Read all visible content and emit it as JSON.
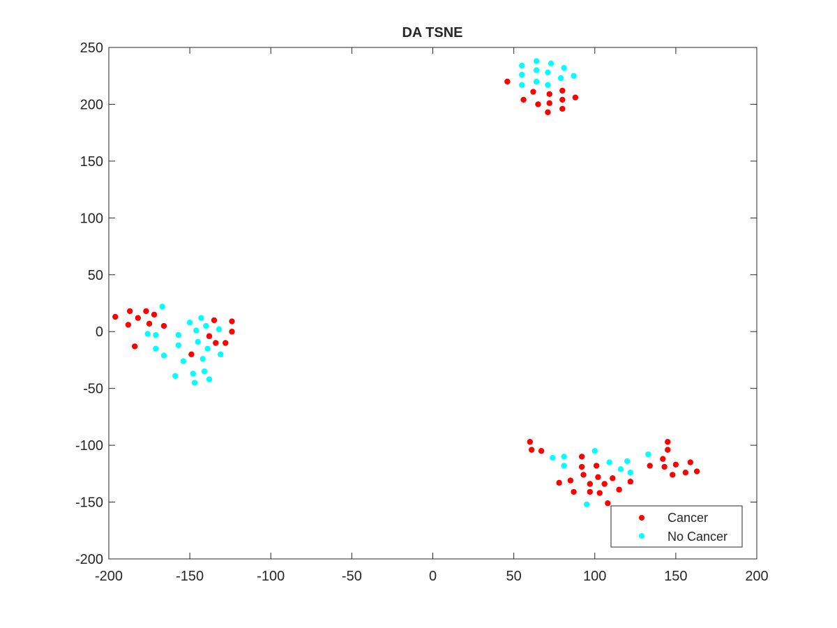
{
  "chart_data": {
    "type": "scatter",
    "title": "DA TSNE",
    "xlabel": "",
    "ylabel": "",
    "xlim": [
      -200,
      200
    ],
    "ylim": [
      -200,
      250
    ],
    "xticks": [
      -200,
      -150,
      -100,
      -50,
      0,
      50,
      100,
      150,
      200
    ],
    "yticks": [
      -200,
      -150,
      -100,
      -50,
      0,
      50,
      100,
      150,
      200,
      250
    ],
    "xtick_labels": [
      "-200",
      "-150",
      "-100",
      "-50",
      "0",
      "50",
      "100",
      "150",
      "200"
    ],
    "ytick_labels": [
      "-200",
      "-150",
      "-100",
      "-50",
      "0",
      "50",
      "100",
      "150",
      "200",
      "250"
    ],
    "grid": false,
    "legend_position": "bottom-right",
    "series": [
      {
        "name": "Cancer",
        "color": "#ff0000",
        "points": [
          [
            -196,
            13
          ],
          [
            -187,
            18
          ],
          [
            -188,
            6
          ],
          [
            -182,
            12
          ],
          [
            -177,
            18
          ],
          [
            -175,
            7
          ],
          [
            -172,
            15
          ],
          [
            -166,
            5
          ],
          [
            -184,
            -13
          ],
          [
            -149,
            -20
          ],
          [
            -135,
            10
          ],
          [
            -138,
            -4
          ],
          [
            -134,
            -10
          ],
          [
            -128,
            -10
          ],
          [
            -124,
            9
          ],
          [
            -124,
            0
          ],
          [
            46,
            220
          ],
          [
            56,
            204
          ],
          [
            62,
            211
          ],
          [
            65,
            200
          ],
          [
            72,
            209
          ],
          [
            72,
            201
          ],
          [
            71,
            193
          ],
          [
            80,
            212
          ],
          [
            80,
            204
          ],
          [
            80,
            196
          ],
          [
            88,
            206
          ],
          [
            60,
            -97
          ],
          [
            61,
            -104
          ],
          [
            67,
            -105
          ],
          [
            78,
            -133
          ],
          [
            85,
            -131
          ],
          [
            87,
            -141
          ],
          [
            92,
            -110
          ],
          [
            92,
            -119
          ],
          [
            93,
            -126
          ],
          [
            97,
            -134
          ],
          [
            97,
            -141
          ],
          [
            101,
            -118
          ],
          [
            102,
            -128
          ],
          [
            103,
            -142
          ],
          [
            106,
            -134
          ],
          [
            108,
            -151
          ],
          [
            111,
            -129
          ],
          [
            115,
            -139
          ],
          [
            122,
            -132
          ],
          [
            134,
            -118
          ],
          [
            142,
            -112
          ],
          [
            143,
            -119
          ],
          [
            145,
            -97
          ],
          [
            145,
            -104
          ],
          [
            148,
            -126
          ],
          [
            150,
            -117
          ],
          [
            156,
            -124
          ],
          [
            159,
            -115
          ],
          [
            163,
            -123
          ]
        ]
      },
      {
        "name": "No Cancer",
        "color": "#00ffff",
        "points": [
          [
            -167,
            22
          ],
          [
            -176,
            -2
          ],
          [
            -171,
            -3
          ],
          [
            -171,
            -15
          ],
          [
            -166,
            -21
          ],
          [
            -157,
            -3
          ],
          [
            -157,
            -12
          ],
          [
            -154,
            -26
          ],
          [
            -159,
            -39
          ],
          [
            -150,
            8
          ],
          [
            -146,
            1
          ],
          [
            -145,
            -9
          ],
          [
            -148,
            -37
          ],
          [
            -147,
            -45
          ],
          [
            -143,
            12
          ],
          [
            -140,
            5
          ],
          [
            -139,
            -15
          ],
          [
            -142,
            -24
          ],
          [
            -141,
            -35
          ],
          [
            -138,
            -42
          ],
          [
            -132,
            2
          ],
          [
            -131,
            -20
          ],
          [
            55,
            234
          ],
          [
            55,
            226
          ],
          [
            55,
            217
          ],
          [
            64,
            238
          ],
          [
            64,
            230
          ],
          [
            64,
            220
          ],
          [
            71,
            228
          ],
          [
            71,
            217
          ],
          [
            73,
            236
          ],
          [
            79,
            223
          ],
          [
            81,
            232
          ],
          [
            87,
            225
          ],
          [
            74,
            -111
          ],
          [
            81,
            -110
          ],
          [
            81,
            -118
          ],
          [
            95,
            -152
          ],
          [
            100,
            -105
          ],
          [
            109,
            -115
          ],
          [
            116,
            -121
          ],
          [
            120,
            -114
          ],
          [
            122,
            -124
          ],
          [
            133,
            -108
          ]
        ]
      }
    ]
  }
}
